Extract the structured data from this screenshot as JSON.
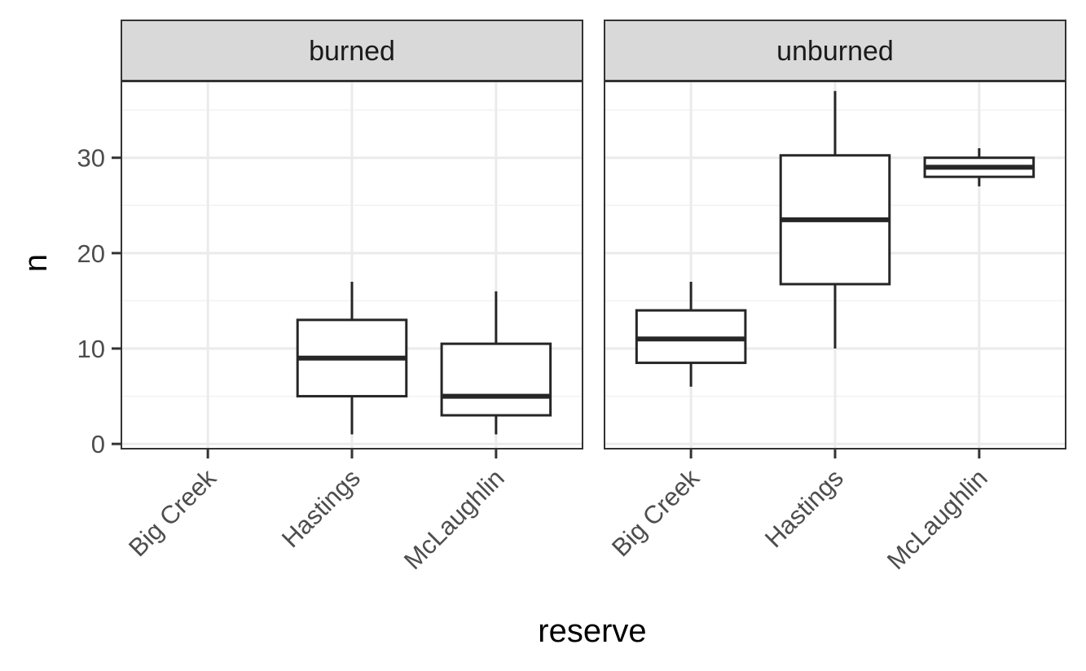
{
  "chart_data": {
    "type": "boxplot",
    "xlabel": "reserve",
    "ylabel": "n",
    "ylim": [
      -0.5,
      38
    ],
    "y_ticks": [
      0,
      10,
      20,
      30
    ],
    "grid": true,
    "categories": [
      "Big Creek",
      "Hastings",
      "McLaughlin"
    ],
    "panels": [
      {
        "label": "burned",
        "boxes": [
          {
            "category": "Hastings",
            "min": 1,
            "q1": 5,
            "median": 9,
            "q3": 13,
            "max": 17
          },
          {
            "category": "McLaughlin",
            "min": 1,
            "q1": 3,
            "median": 5,
            "q3": 10.5,
            "max": 16
          }
        ]
      },
      {
        "label": "unburned",
        "boxes": [
          {
            "category": "Big Creek",
            "min": 6,
            "q1": 8.5,
            "median": 11,
            "q3": 14,
            "max": 17
          },
          {
            "category": "Hastings",
            "min": 10,
            "q1": 16.75,
            "median": 23.5,
            "q3": 30.25,
            "max": 37
          },
          {
            "category": "McLaughlin",
            "min": 27,
            "q1": 28,
            "median": 29,
            "q3": 30,
            "max": 31
          }
        ]
      }
    ]
  },
  "colors": {
    "strip_fill": "#d9d9d9",
    "border": "#333333",
    "grid_major": "#ebebeb",
    "grid_minor": "#f2f2f2",
    "box_stroke": "#262626",
    "box_fill": "#ffffff"
  }
}
